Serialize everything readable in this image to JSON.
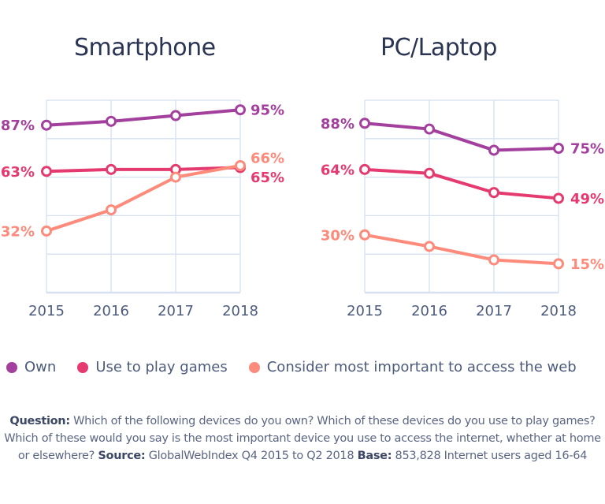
{
  "chart_data": [
    {
      "type": "line",
      "title": "Smartphone",
      "categories": [
        "2015",
        "2016",
        "2017",
        "2018"
      ],
      "ylim": [
        0,
        100
      ],
      "grid": true,
      "series": [
        {
          "name": "Own",
          "color": "#a3409d",
          "values": [
            87,
            89,
            92,
            95
          ],
          "labels": {
            "start": "87%",
            "end": "95%"
          }
        },
        {
          "name": "Use to play games",
          "color": "#e53a6f",
          "values": [
            63,
            64,
            64,
            65
          ],
          "labels": {
            "start": "63%",
            "end": "65%"
          }
        },
        {
          "name": "Consider most important to access the web",
          "color": "#fd8b7b",
          "values": [
            32,
            43,
            60,
            66
          ],
          "labels": {
            "start": "32%",
            "end": "66%"
          }
        }
      ]
    },
    {
      "type": "line",
      "title": "PC/Laptop",
      "categories": [
        "2015",
        "2016",
        "2017",
        "2018"
      ],
      "ylim": [
        0,
        100
      ],
      "grid": true,
      "series": [
        {
          "name": "Own",
          "color": "#a3409d",
          "values": [
            88,
            85,
            74,
            75
          ],
          "labels": {
            "start": "88%",
            "end": "75%"
          }
        },
        {
          "name": "Use to play games",
          "color": "#e53a6f",
          "values": [
            64,
            62,
            52,
            49
          ],
          "labels": {
            "start": "64%",
            "end": "49%"
          }
        },
        {
          "name": "Consider most important to access the web",
          "color": "#fd8b7b",
          "values": [
            30,
            24,
            17,
            15
          ],
          "labels": {
            "start": "30%",
            "end": "15%"
          }
        }
      ]
    }
  ],
  "legend": [
    {
      "label": "Own",
      "color": "#a3409d"
    },
    {
      "label": "Use to play games",
      "color": "#e53a6f"
    },
    {
      "label": "Consider most important to access the web",
      "color": "#fd8b7b"
    }
  ],
  "footnote": {
    "question_label": "Question:",
    "question_text": " Which of the following devices do you own? Which of these devices do you use to play games? Which of these would you say is the most important device you use to access the internet, whether at home or elsewhere? ",
    "source_label": "Source:",
    "source_text": " GlobalWebIndex Q4 2015 to Q2 2018 ",
    "base_label": "Base:",
    "base_text": " 853,828 Internet users aged 16-64"
  }
}
